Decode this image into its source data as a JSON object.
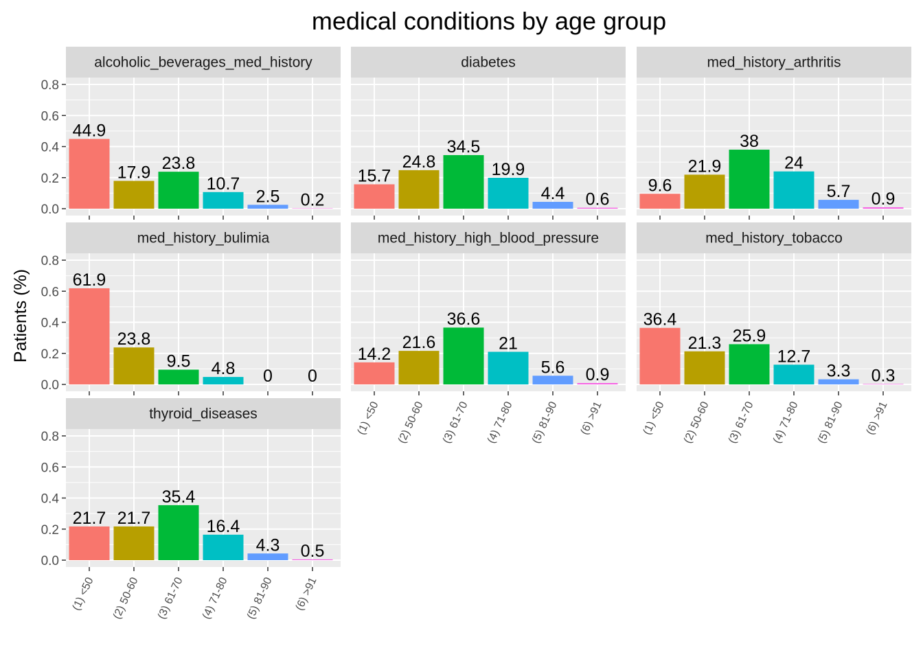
{
  "chart_data": {
    "type": "bar",
    "title": "medical conditions by age group",
    "ylabel": "Patients (%)",
    "xlabel": "",
    "ylim": [
      0,
      0.8
    ],
    "y_ticks": [
      "0.0",
      "0.2",
      "0.4",
      "0.6",
      "0.8"
    ],
    "categories": [
      "(1) <50",
      "(2) 50-60",
      "(3) 61-70",
      "(4) 71-80",
      "(5) 81-90",
      "(6) >91"
    ],
    "colors": [
      "#F8766D",
      "#B79F00",
      "#00BA38",
      "#00BFC4",
      "#619CFF",
      "#F564E3"
    ],
    "panel_background": "#EBEBEB",
    "strip_background": "#D9D9D9",
    "grid": true,
    "legend": "none",
    "facets": [
      {
        "name": "alcoholic_beverages_med_history",
        "values": [
          0.449,
          0.179,
          0.238,
          0.107,
          0.025,
          0.002
        ],
        "labels": [
          "44.9",
          "17.9",
          "23.8",
          "10.7",
          "2.5",
          "0.2"
        ]
      },
      {
        "name": "diabetes",
        "values": [
          0.157,
          0.248,
          0.345,
          0.199,
          0.044,
          0.006
        ],
        "labels": [
          "15.7",
          "24.8",
          "34.5",
          "19.9",
          "4.4",
          "0.6"
        ]
      },
      {
        "name": "med_history_arthritis",
        "values": [
          0.096,
          0.219,
          0.38,
          0.24,
          0.057,
          0.009
        ],
        "labels": [
          "9.6",
          "21.9",
          "38",
          "24",
          "5.7",
          "0.9"
        ]
      },
      {
        "name": "med_history_bulimia",
        "values": [
          0.619,
          0.238,
          0.095,
          0.048,
          0,
          0
        ],
        "labels": [
          "61.9",
          "23.8",
          "9.5",
          "4.8",
          "0",
          "0"
        ]
      },
      {
        "name": "med_history_high_blood_pressure",
        "values": [
          0.142,
          0.216,
          0.366,
          0.21,
          0.056,
          0.009
        ],
        "labels": [
          "14.2",
          "21.6",
          "36.6",
          "21",
          "5.6",
          "0.9"
        ]
      },
      {
        "name": "med_history_tobacco",
        "values": [
          0.364,
          0.213,
          0.259,
          0.127,
          0.033,
          0.003
        ],
        "labels": [
          "36.4",
          "21.3",
          "25.9",
          "12.7",
          "3.3",
          "0.3"
        ]
      },
      {
        "name": "thyroid_diseases",
        "values": [
          0.217,
          0.217,
          0.354,
          0.164,
          0.043,
          0.005
        ],
        "labels": [
          "21.7",
          "21.7",
          "35.4",
          "16.4",
          "4.3",
          "0.5"
        ]
      }
    ]
  }
}
